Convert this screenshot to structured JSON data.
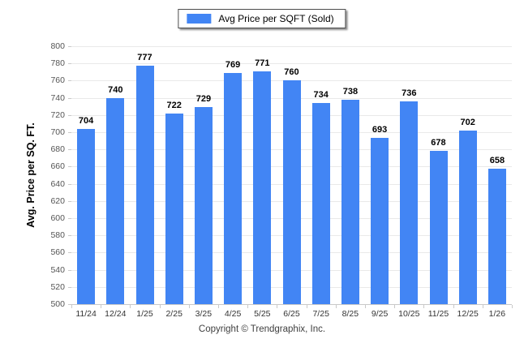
{
  "legend": {
    "label": "Avg Price per SQFT (Sold)"
  },
  "chart_data": {
    "type": "bar",
    "title": "",
    "series_name": "Avg Price per SQFT (Sold)",
    "categories": [
      "11/24",
      "12/24",
      "1/25",
      "2/25",
      "3/25",
      "4/25",
      "5/25",
      "6/25",
      "7/25",
      "8/25",
      "9/25",
      "10/25",
      "11/25",
      "12/25",
      "1/26"
    ],
    "values": [
      704,
      740,
      777,
      722,
      729,
      769,
      771,
      760,
      734,
      738,
      693,
      736,
      678,
      702,
      658
    ],
    "xlabel": "",
    "ylabel": "Avg. Price per SQ. FT.",
    "ylim": [
      500,
      800
    ],
    "ytick_step": 20,
    "grid": true,
    "legend_position": "top-center",
    "value_labels_shown": true,
    "bar_color": "#4285F4",
    "grid_color": "#e9e9e9",
    "axis_color": "#c9c9c9"
  },
  "footer": {
    "copyright_text": "Copyright © Trendgraphix, Inc."
  }
}
